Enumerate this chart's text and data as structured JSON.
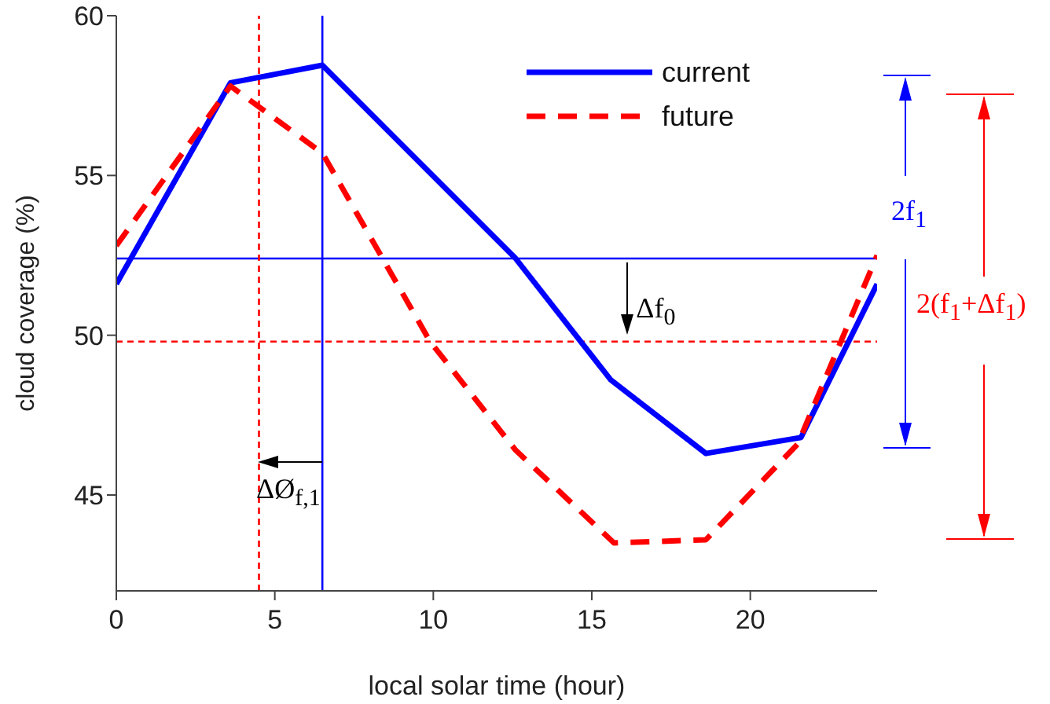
{
  "chart_data": {
    "type": "line",
    "xlabel": "local solar time (hour)",
    "ylabel": "cloud coverage (%)",
    "xlim": [
      0,
      24
    ],
    "xticks": [
      0,
      5,
      10,
      15,
      20
    ],
    "ylim": [
      42,
      60
    ],
    "yticks": [
      45,
      50,
      55,
      60
    ],
    "grid": false,
    "legend": "top right",
    "marker": "none",
    "series": [
      {
        "name": "current",
        "color": "#0000ff",
        "line_style": "solid",
        "x": [
          0,
          3.6,
          6.5,
          12.6,
          15.6,
          18.6,
          21.6,
          24
        ],
        "values": [
          51.6,
          57.9,
          58.45,
          52.4,
          48.6,
          46.3,
          46.8,
          51.6
        ]
      },
      {
        "name": "future",
        "color": "#ff0000",
        "line_style": "dashed",
        "x": [
          0,
          3.6,
          6.5,
          9.9,
          12.6,
          15.7,
          18.6,
          21.5,
          24
        ],
        "values": [
          52.8,
          57.8,
          55.7,
          49.8,
          46.4,
          43.5,
          43.6,
          46.6,
          52.5
        ]
      }
    ],
    "ref_lines": [
      {
        "axis": "y",
        "value": 52.4,
        "color": "#0000ff",
        "line_style": "solid"
      },
      {
        "axis": "x",
        "value": 6.5,
        "color": "#0000ff",
        "line_style": "solid"
      },
      {
        "axis": "y",
        "value": 49.8,
        "color": "#ff0000",
        "line_style": "dashed"
      },
      {
        "axis": "x",
        "value": 4.5,
        "color": "#ff0000",
        "line_style": "dashed"
      }
    ],
    "annotations": [
      {
        "text": "Δf$_{0}$",
        "x": 16.1,
        "y": 49.8
      },
      "ΔØ$_{f,1}$",
      "2f$_{1}$",
      "2(f$_{1}$+Δf$_{1}$)"
    ]
  }
}
